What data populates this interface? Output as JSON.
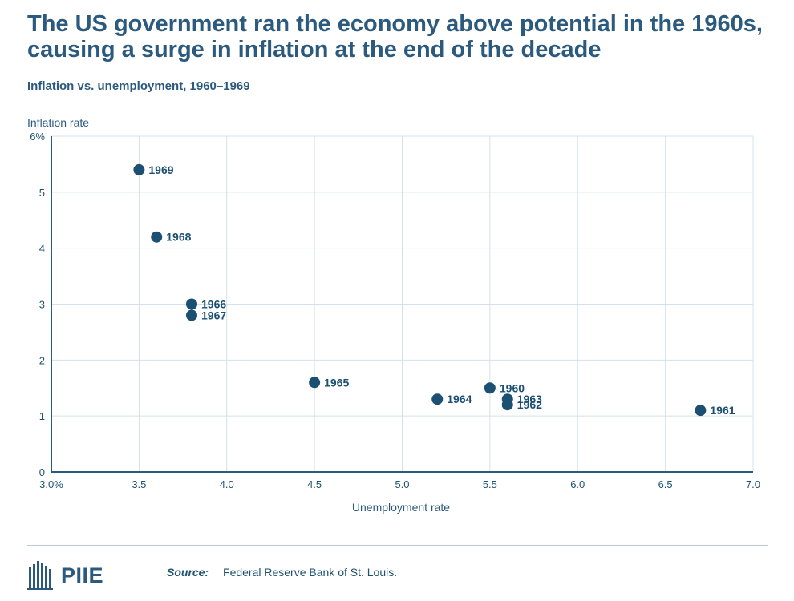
{
  "title": "The US government ran the economy above potential in the 1960s, causing a surge in inflation at the end of the decade",
  "subtitle": "Inflation vs. unemployment, 1960–1969",
  "footer": {
    "logo_text": "PIIE",
    "source_label": "Source:",
    "source_text": "Federal Reserve Bank of St. Louis."
  },
  "colors": {
    "accent": "#1b5073",
    "grid": "#d4e1ea",
    "axis": "#2b5a7e",
    "text": "#1f5170"
  },
  "chart_data": {
    "type": "scatter",
    "xlabel": "Unemployment rate",
    "ylabel": "Inflation rate",
    "xlim": [
      3.0,
      7.0
    ],
    "ylim": [
      0,
      6
    ],
    "x_ticks": [
      3.0,
      3.5,
      4.0,
      4.5,
      5.0,
      5.5,
      6.0,
      6.5,
      7.0
    ],
    "x_tick_labels": [
      "3.0%",
      "3.5",
      "4.0",
      "4.5",
      "5.0",
      "5.5",
      "6.0",
      "6.5",
      "7.0"
    ],
    "y_ticks": [
      0,
      1,
      2,
      3,
      4,
      5,
      6
    ],
    "y_tick_labels": [
      "0",
      "1",
      "2",
      "3",
      "4",
      "5",
      "6%"
    ],
    "grid": true,
    "points": [
      {
        "label": "1960",
        "x": 5.5,
        "y": 1.5
      },
      {
        "label": "1961",
        "x": 6.7,
        "y": 1.1
      },
      {
        "label": "1962",
        "x": 5.6,
        "y": 1.2
      },
      {
        "label": "1963",
        "x": 5.6,
        "y": 1.3
      },
      {
        "label": "1964",
        "x": 5.2,
        "y": 1.3
      },
      {
        "label": "1965",
        "x": 4.5,
        "y": 1.6
      },
      {
        "label": "1966",
        "x": 3.8,
        "y": 3.0
      },
      {
        "label": "1967",
        "x": 3.8,
        "y": 2.8
      },
      {
        "label": "1968",
        "x": 3.6,
        "y": 4.2
      },
      {
        "label": "1969",
        "x": 3.5,
        "y": 5.4
      }
    ]
  }
}
